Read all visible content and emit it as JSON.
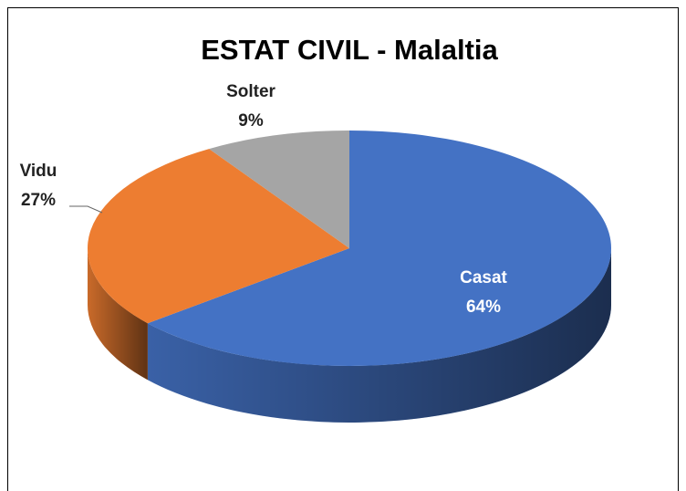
{
  "chart_data": {
    "type": "pie",
    "title": "ESTAT CIVIL - Malaltia",
    "categories": [
      "Casat",
      "Vidu",
      "Solter"
    ],
    "values": [
      64,
      27,
      9
    ],
    "value_labels": [
      "64%",
      "27%",
      "9%"
    ],
    "colors": [
      "#4472c4",
      "#ed7d31",
      "#a5a5a5"
    ]
  }
}
